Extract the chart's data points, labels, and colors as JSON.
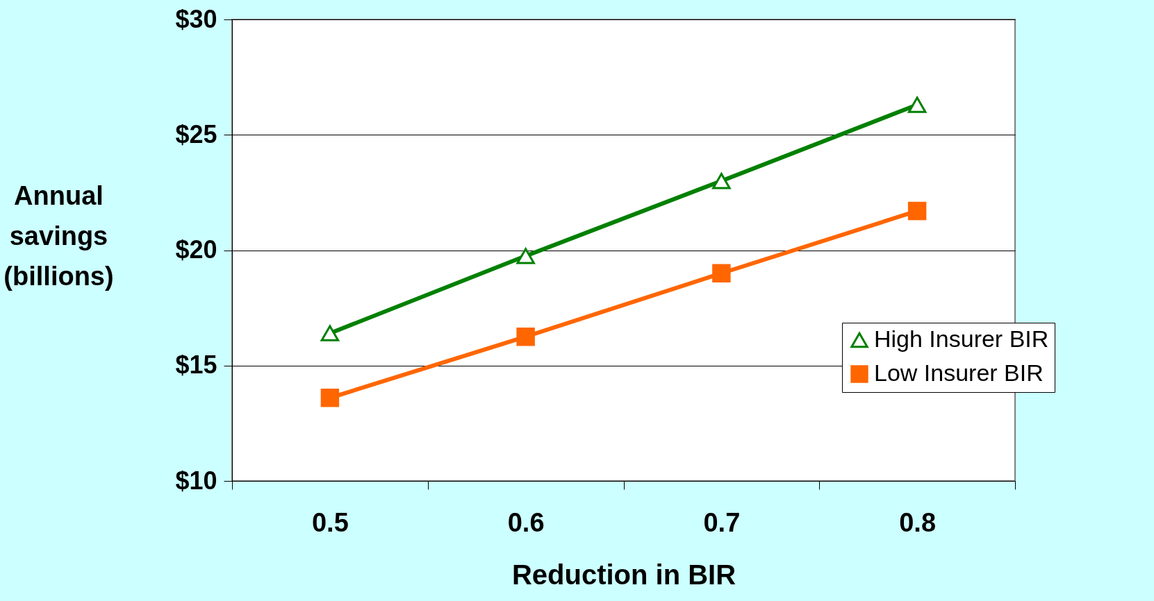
{
  "chart_data": {
    "type": "line",
    "xlabel": "Reduction in BIR",
    "ylabel": "Annual savings (billions)",
    "categories": [
      "0.5",
      "0.6",
      "0.7",
      "0.8"
    ],
    "series": [
      {
        "name": "High Insurer BIR",
        "color": "#008000",
        "marker": "triangle",
        "values": [
          16.4,
          19.75,
          23.0,
          26.3
        ]
      },
      {
        "name": "Low Insurer BIR",
        "color": "#ff6600",
        "marker": "square",
        "values": [
          13.6,
          16.25,
          19.0,
          21.7
        ]
      }
    ],
    "ylim": [
      10,
      30
    ],
    "yticks": [
      {
        "value": 10,
        "label": "$10"
      },
      {
        "value": 15,
        "label": "$15"
      },
      {
        "value": 20,
        "label": "$20"
      },
      {
        "value": 25,
        "label": "$25"
      },
      {
        "value": 30,
        "label": "$30"
      }
    ],
    "grid": "y",
    "legend": "right"
  }
}
